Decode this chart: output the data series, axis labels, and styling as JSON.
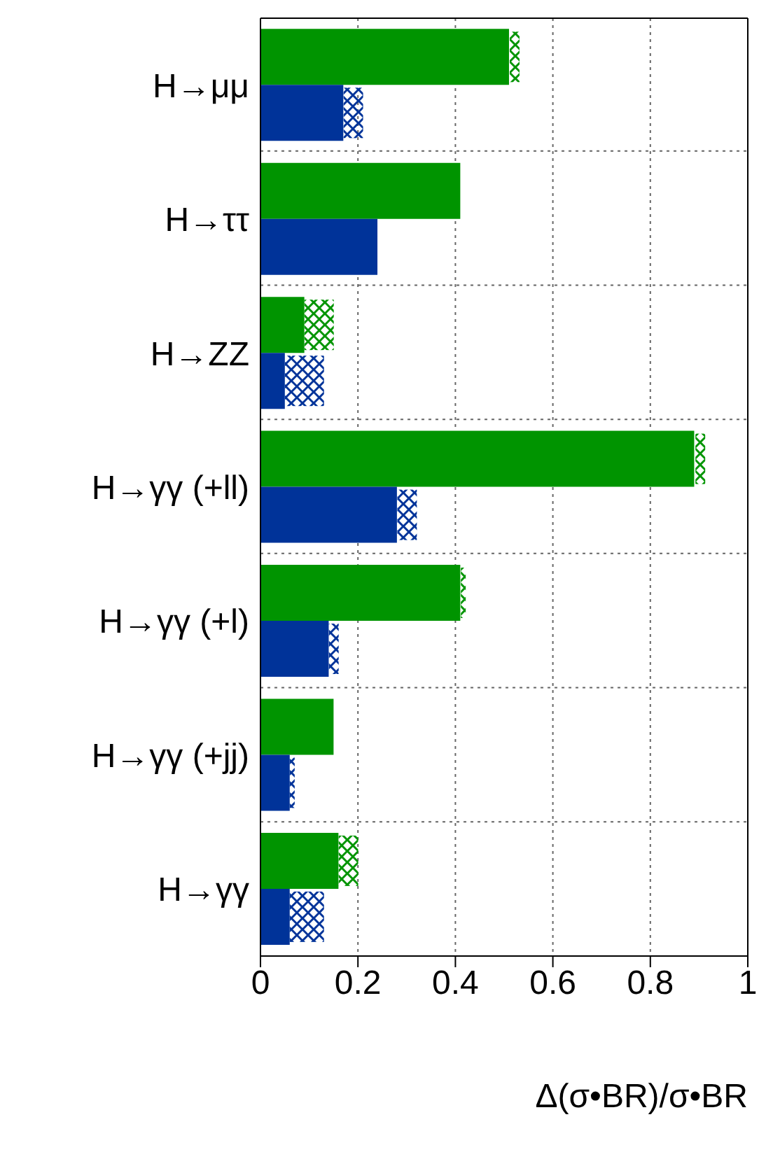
{
  "chart_data": {
    "type": "bar",
    "orientation": "horizontal",
    "categories": [
      "H→μμ",
      "H→ττ",
      "H→ZZ",
      "H→γγ (+ll)",
      "H→γγ (+l)",
      "H→γγ (+jj)",
      "H→γγ"
    ],
    "series": [
      {
        "color": "#009400",
        "values": [
          0.51,
          0.41,
          0.09,
          0.89,
          0.41,
          0.15,
          0.16
        ]
      },
      {
        "color": "#009400",
        "base": [
          0.51,
          null,
          0.09,
          0.89,
          0.41,
          null,
          0.16
        ],
        "values": [
          0.02,
          null,
          0.06,
          0.02,
          0.01,
          null,
          0.04
        ]
      },
      {
        "color": "#003399",
        "values": [
          0.17,
          0.24,
          0.05,
          0.28,
          0.14,
          0.06,
          0.06
        ]
      },
      {
        "color": "#003399",
        "base": [
          0.17,
          null,
          0.05,
          0.28,
          0.14,
          0.06,
          0.06
        ],
        "values": [
          0.04,
          null,
          0.08,
          0.04,
          0.02,
          0.01,
          0.07
        ]
      }
    ],
    "xlim": [
      0,
      1
    ],
    "xticks": [
      0,
      0.2,
      0.4,
      0.6,
      0.8,
      1
    ],
    "xlabel": "Δ(σ•BR)/σ•BR",
    "grid": true
  }
}
